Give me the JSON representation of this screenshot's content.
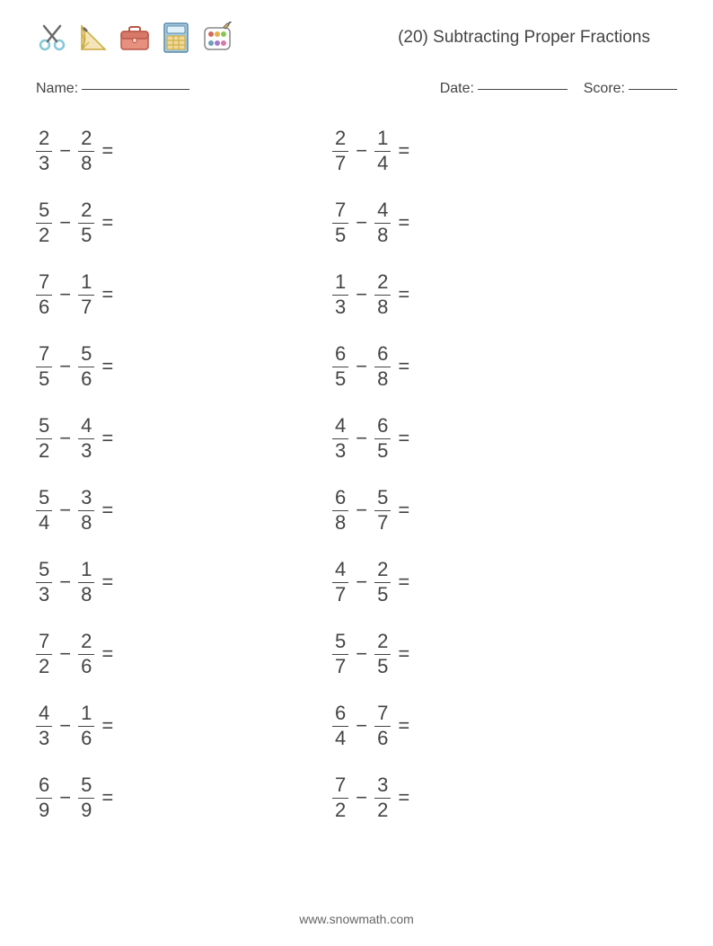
{
  "header": {
    "title": "(20) Subtracting Proper Fractions"
  },
  "info": {
    "name_label": "Name:",
    "date_label": "Date:",
    "score_label": "Score:"
  },
  "icons": {
    "scissors_color": "#86c8d8",
    "protractor_color": "#e8c878",
    "briefcase_color": "#d46a5b",
    "calculator_color1": "#6b9fba",
    "calculator_color2": "#e8b048",
    "palette_colors": [
      "#d46a5b",
      "#e8b048",
      "#86c858",
      "#6b9fba",
      "#a878c8",
      "#d878a8",
      "#e88848",
      "#58b8a8"
    ]
  },
  "operator": "−",
  "equals": "=",
  "problems": {
    "col1": [
      {
        "a_num": "2",
        "a_den": "3",
        "b_num": "2",
        "b_den": "8"
      },
      {
        "a_num": "5",
        "a_den": "2",
        "b_num": "2",
        "b_den": "5"
      },
      {
        "a_num": "7",
        "a_den": "6",
        "b_num": "1",
        "b_den": "7"
      },
      {
        "a_num": "7",
        "a_den": "5",
        "b_num": "5",
        "b_den": "6"
      },
      {
        "a_num": "5",
        "a_den": "2",
        "b_num": "4",
        "b_den": "3"
      },
      {
        "a_num": "5",
        "a_den": "4",
        "b_num": "3",
        "b_den": "8"
      },
      {
        "a_num": "5",
        "a_den": "3",
        "b_num": "1",
        "b_den": "8"
      },
      {
        "a_num": "7",
        "a_den": "2",
        "b_num": "2",
        "b_den": "6"
      },
      {
        "a_num": "4",
        "a_den": "3",
        "b_num": "1",
        "b_den": "6"
      },
      {
        "a_num": "6",
        "a_den": "9",
        "b_num": "5",
        "b_den": "9"
      }
    ],
    "col2": [
      {
        "a_num": "2",
        "a_den": "7",
        "b_num": "1",
        "b_den": "4"
      },
      {
        "a_num": "7",
        "a_den": "5",
        "b_num": "4",
        "b_den": "8"
      },
      {
        "a_num": "1",
        "a_den": "3",
        "b_num": "2",
        "b_den": "8"
      },
      {
        "a_num": "6",
        "a_den": "5",
        "b_num": "6",
        "b_den": "8"
      },
      {
        "a_num": "4",
        "a_den": "3",
        "b_num": "6",
        "b_den": "5"
      },
      {
        "a_num": "6",
        "a_den": "8",
        "b_num": "5",
        "b_den": "7"
      },
      {
        "a_num": "4",
        "a_den": "7",
        "b_num": "2",
        "b_den": "5"
      },
      {
        "a_num": "5",
        "a_den": "7",
        "b_num": "2",
        "b_den": "5"
      },
      {
        "a_num": "6",
        "a_den": "4",
        "b_num": "7",
        "b_den": "6"
      },
      {
        "a_num": "7",
        "a_den": "2",
        "b_num": "3",
        "b_den": "2"
      }
    ]
  },
  "footer": "www.snowmath.com"
}
